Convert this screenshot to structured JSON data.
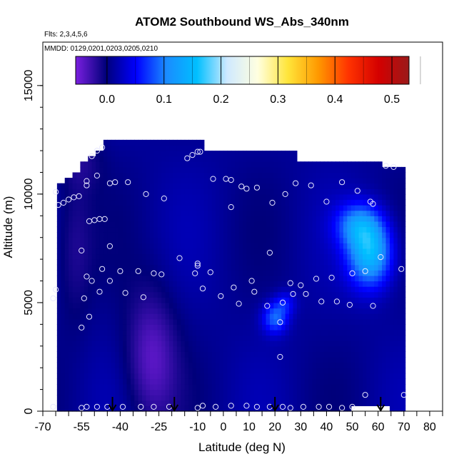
{
  "chart_data": {
    "type": "heatmap",
    "title": "ATOM2 Southbound WS_Abs_340nm",
    "notes": [
      "Flts: 2,3,4,5,6",
      "MMDD: 0129,0201,0203,0205,0210"
    ],
    "xlabel": "Latitude (deg N)",
    "ylabel": "Altitude (m)",
    "xlim": [
      -70,
      85
    ],
    "ylim": [
      0,
      17000
    ],
    "x_ticks": [
      -70,
      -55,
      -40,
      -25,
      -10,
      0,
      10,
      20,
      30,
      40,
      50,
      60,
      70,
      80
    ],
    "x_tick_labels": [
      "-70",
      "-55",
      "-40",
      "-25",
      "-10",
      "0",
      "10",
      "20",
      "30",
      "40",
      "50",
      "60",
      "70",
      "80"
    ],
    "y_ticks": [
      0,
      5000,
      10000,
      15000
    ],
    "y_tick_labels": [
      "0",
      "5000",
      "10000",
      "15000"
    ],
    "colorbar": {
      "min": -0.055,
      "max": 0.53,
      "ticks": [
        0.0,
        0.1,
        0.2,
        0.3,
        0.4,
        0.5
      ],
      "tick_labels": [
        "0.0",
        "0.1",
        "0.2",
        "0.3",
        "0.4",
        "0.5"
      ],
      "colors": [
        "#7a1fe0",
        "#00007a",
        "#0000ff",
        "#1a8cff",
        "#00bfff",
        "#cfe9ff",
        "#ffffe0",
        "#ffe53a",
        "#ff9900",
        "#ff3300",
        "#d40000",
        "#9a1a1a"
      ]
    },
    "field": {
      "background_value": 0.01,
      "features": [
        {
          "name": "purple-low-wedge",
          "lat": -28,
          "alt": 2500,
          "sigma_lat": 7,
          "sigma_alt": 2200,
          "delta": -0.05
        },
        {
          "name": "purple-sw-mid",
          "lat": -58,
          "alt": 7500,
          "sigma_lat": 5,
          "sigma_alt": 2500,
          "delta": -0.025
        },
        {
          "name": "purple-sw-top",
          "lat": -55,
          "alt": 11500,
          "sigma_lat": 6,
          "sigma_alt": 900,
          "delta": -0.02
        },
        {
          "name": "plume-ne",
          "lat": 57,
          "alt": 7300,
          "sigma_lat": 6,
          "sigma_alt": 1100,
          "delta": 0.14
        },
        {
          "name": "plume-ne-upper",
          "lat": 52,
          "alt": 8600,
          "sigma_lat": 6,
          "sigma_alt": 700,
          "delta": 0.08
        },
        {
          "name": "plume-mid",
          "lat": 20,
          "alt": 4300,
          "sigma_lat": 3.5,
          "sigma_alt": 500,
          "delta": 0.08
        },
        {
          "name": "plume-mid-2",
          "lat": 24,
          "alt": 5000,
          "sigma_lat": 3,
          "sigma_alt": 400,
          "delta": 0.04
        }
      ],
      "coverage": [
        {
          "lat_min": -65,
          "lat_max": -61,
          "alt_min": 0,
          "alt_max": 10500
        },
        {
          "lat_min": -61,
          "lat_max": -58,
          "alt_min": 0,
          "alt_max": 10800
        },
        {
          "lat_min": -58,
          "lat_max": -55,
          "alt_min": 0,
          "alt_max": 11100
        },
        {
          "lat_min": -55,
          "lat_max": -52,
          "alt_min": 0,
          "alt_max": 11400
        },
        {
          "lat_min": -52,
          "lat_max": -49,
          "alt_min": 0,
          "alt_max": 11700
        },
        {
          "lat_min": -49,
          "lat_max": -46,
          "alt_min": 0,
          "alt_max": 12000
        },
        {
          "lat_min": -46,
          "lat_max": -7,
          "alt_min": 0,
          "alt_max": 12400
        },
        {
          "lat_min": -7,
          "lat_max": 28,
          "alt_min": 0,
          "alt_max": 11900
        },
        {
          "lat_min": 28,
          "lat_max": 62,
          "alt_min": 0,
          "alt_max": 11600
        },
        {
          "lat_min": 62,
          "lat_max": 71,
          "alt_min": 0,
          "alt_max": 11300
        }
      ],
      "gaps": [
        {
          "lat_min": 50,
          "lat_max": 64,
          "alt_min": 0,
          "alt_max": 250
        }
      ]
    },
    "observations": [
      {
        "lat": -65,
        "alt": 10100
      },
      {
        "lat": -64,
        "alt": 9500
      },
      {
        "lat": -62,
        "alt": 9600
      },
      {
        "lat": -60,
        "alt": 9750
      },
      {
        "lat": -58,
        "alt": 9850
      },
      {
        "lat": -56,
        "alt": 9900
      },
      {
        "lat": -53,
        "alt": 10400
      },
      {
        "lat": -53,
        "alt": 10600
      },
      {
        "lat": -51,
        "alt": 11750
      },
      {
        "lat": -49,
        "alt": 12000
      },
      {
        "lat": -47,
        "alt": 12150
      },
      {
        "lat": -49,
        "alt": 10850
      },
      {
        "lat": -44,
        "alt": 10500
      },
      {
        "lat": -42,
        "alt": 10550
      },
      {
        "lat": -37,
        "alt": 10550
      },
      {
        "lat": -30,
        "alt": 10000
      },
      {
        "lat": -23,
        "alt": 9800
      },
      {
        "lat": -14,
        "alt": 11650
      },
      {
        "lat": -12,
        "alt": 11800
      },
      {
        "lat": -10,
        "alt": 11950
      },
      {
        "lat": -9,
        "alt": 11950
      },
      {
        "lat": -4,
        "alt": 10700
      },
      {
        "lat": 1,
        "alt": 10700
      },
      {
        "lat": 3,
        "alt": 10650
      },
      {
        "lat": 7,
        "alt": 10350
      },
      {
        "lat": 9,
        "alt": 10250
      },
      {
        "lat": 13,
        "alt": 10300
      },
      {
        "lat": 19,
        "alt": 9600
      },
      {
        "lat": 24,
        "alt": 10000
      },
      {
        "lat": 28,
        "alt": 10500
      },
      {
        "lat": 34,
        "alt": 10400
      },
      {
        "lat": 40,
        "alt": 9650
      },
      {
        "lat": 46,
        "alt": 10550
      },
      {
        "lat": 52,
        "alt": 10150
      },
      {
        "lat": 57,
        "alt": 9650
      },
      {
        "lat": 58,
        "alt": 9550
      },
      {
        "lat": 63,
        "alt": 11300
      },
      {
        "lat": 66,
        "alt": 11250
      },
      {
        "lat": 3,
        "alt": 9400
      },
      {
        "lat": -52,
        "alt": 8750
      },
      {
        "lat": -50,
        "alt": 8800
      },
      {
        "lat": -48,
        "alt": 8850
      },
      {
        "lat": -46,
        "alt": 8850
      },
      {
        "lat": -44,
        "alt": 7600
      },
      {
        "lat": -55,
        "alt": 7400
      },
      {
        "lat": -17,
        "alt": 7050
      },
      {
        "lat": 18,
        "alt": 7300
      },
      {
        "lat": 61,
        "alt": 7100
      },
      {
        "lat": 69,
        "alt": 6550
      },
      {
        "lat": -47,
        "alt": 6550
      },
      {
        "lat": -40,
        "alt": 6450
      },
      {
        "lat": -33,
        "alt": 6450
      },
      {
        "lat": -27,
        "alt": 6350
      },
      {
        "lat": -24,
        "alt": 6300
      },
      {
        "lat": -10,
        "alt": 6800
      },
      {
        "lat": -10,
        "alt": 6700
      },
      {
        "lat": -11,
        "alt": 6350
      },
      {
        "lat": -5,
        "alt": 6400
      },
      {
        "lat": -53,
        "alt": 6200
      },
      {
        "lat": -51,
        "alt": 6000
      },
      {
        "lat": -44,
        "alt": 6000
      },
      {
        "lat": -48,
        "alt": 5500
      },
      {
        "lat": -54,
        "alt": 5200
      },
      {
        "lat": -65,
        "alt": 5600
      },
      {
        "lat": -66,
        "alt": 5200
      },
      {
        "lat": -38,
        "alt": 5450
      },
      {
        "lat": -31,
        "alt": 5250
      },
      {
        "lat": -8,
        "alt": 5650
      },
      {
        "lat": 4,
        "alt": 5700
      },
      {
        "lat": 11,
        "alt": 6000
      },
      {
        "lat": 12,
        "alt": 5500
      },
      {
        "lat": 26,
        "alt": 5900
      },
      {
        "lat": 30,
        "alt": 5800
      },
      {
        "lat": 32,
        "alt": 5400
      },
      {
        "lat": 36,
        "alt": 6100
      },
      {
        "lat": 42,
        "alt": 6150
      },
      {
        "lat": 50,
        "alt": 6350
      },
      {
        "lat": 55,
        "alt": 6450
      },
      {
        "lat": -1,
        "alt": 5300
      },
      {
        "lat": 6,
        "alt": 4950
      },
      {
        "lat": 17,
        "alt": 4850
      },
      {
        "lat": 23,
        "alt": 5000
      },
      {
        "lat": 27,
        "alt": 5400
      },
      {
        "lat": 38,
        "alt": 5050
      },
      {
        "lat": 44,
        "alt": 5050
      },
      {
        "lat": 49,
        "alt": 4900
      },
      {
        "lat": 58,
        "alt": 4850
      },
      {
        "lat": -52,
        "alt": 4350
      },
      {
        "lat": -55,
        "alt": 3850
      },
      {
        "lat": 22,
        "alt": 4100
      },
      {
        "lat": 22,
        "alt": 2500
      },
      {
        "lat": -66,
        "alt": 200
      },
      {
        "lat": -55,
        "alt": 150
      },
      {
        "lat": -53,
        "alt": 200
      },
      {
        "lat": -49,
        "alt": 200
      },
      {
        "lat": -45,
        "alt": 200
      },
      {
        "lat": -39,
        "alt": 200
      },
      {
        "lat": -32,
        "alt": 200
      },
      {
        "lat": -27,
        "alt": 200
      },
      {
        "lat": -21,
        "alt": 200
      },
      {
        "lat": -10,
        "alt": 150
      },
      {
        "lat": -8,
        "alt": 250
      },
      {
        "lat": -3,
        "alt": 200
      },
      {
        "lat": 3,
        "alt": 250
      },
      {
        "lat": 9,
        "alt": 250
      },
      {
        "lat": 13,
        "alt": 200
      },
      {
        "lat": 18,
        "alt": 200
      },
      {
        "lat": 23,
        "alt": 200
      },
      {
        "lat": 26,
        "alt": 150
      },
      {
        "lat": 31,
        "alt": 200
      },
      {
        "lat": 37,
        "alt": 200
      },
      {
        "lat": 41,
        "alt": 200
      },
      {
        "lat": 46,
        "alt": 150
      },
      {
        "lat": 50,
        "alt": 200
      },
      {
        "lat": 55,
        "alt": 750
      },
      {
        "lat": 70,
        "alt": 750
      }
    ],
    "arrows_lat": [
      -43,
      -19,
      20,
      61
    ]
  }
}
